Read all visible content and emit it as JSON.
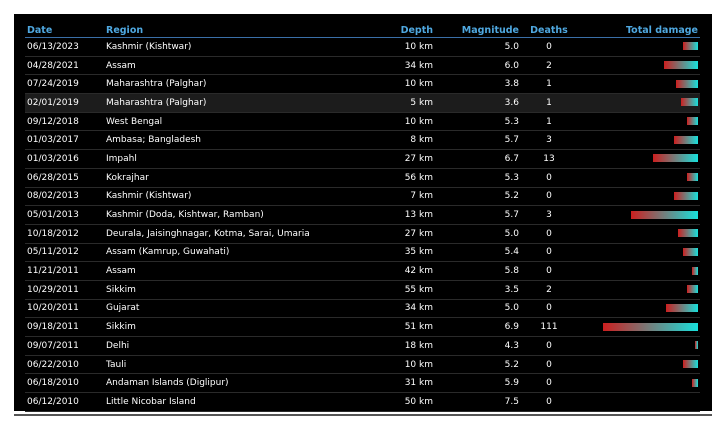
{
  "columns": {
    "date": "Date",
    "region": "Region",
    "depth": "Depth",
    "magnitude": "Magnitude",
    "deaths": "Deaths",
    "damage": "Total damage"
  },
  "colors": {
    "background": "#000000",
    "header": "#4fa8e0",
    "bar_start": "#cc1f1f",
    "bar_end": "#18e0dc"
  },
  "rows": [
    {
      "date": "06/13/2023",
      "region": "Kashmir (Kishtwar)",
      "depth": "10 km",
      "magnitude": "5.0",
      "deaths": "0",
      "damage": 0.16
    },
    {
      "date": "04/28/2021",
      "region": "Assam",
      "depth": "34 km",
      "magnitude": "6.0",
      "deaths": "2",
      "damage": 0.36
    },
    {
      "date": "07/24/2019",
      "region": "Maharashtra (Palghar)",
      "depth": "10 km",
      "magnitude": "3.8",
      "deaths": "1",
      "damage": 0.23
    },
    {
      "date": "02/01/2019",
      "region": "Maharashtra (Palghar)",
      "depth": "5 km",
      "magnitude": "3.6",
      "deaths": "1",
      "damage": 0.18,
      "highlight": true
    },
    {
      "date": "09/12/2018",
      "region": "West Bengal",
      "depth": "10 km",
      "magnitude": "5.3",
      "deaths": "1",
      "damage": 0.12
    },
    {
      "date": "01/03/2017",
      "region": "Ambasa; Bangladesh",
      "depth": "8 km",
      "magnitude": "5.7",
      "deaths": "3",
      "damage": 0.25
    },
    {
      "date": "01/03/2016",
      "region": "Impahl",
      "depth": "27 km",
      "magnitude": "6.7",
      "deaths": "13",
      "damage": 0.47
    },
    {
      "date": "06/28/2015",
      "region": "Kokrajhar",
      "depth": "56 km",
      "magnitude": "5.3",
      "deaths": "0",
      "damage": 0.12
    },
    {
      "date": "08/02/2013",
      "region": "Kashmir (Kishtwar)",
      "depth": "7 km",
      "magnitude": "5.2",
      "deaths": "0",
      "damage": 0.25
    },
    {
      "date": "05/01/2013",
      "region": "Kashmir (Doda, Kishtwar, Ramban)",
      "depth": "13 km",
      "magnitude": "5.7",
      "deaths": "3",
      "damage": 0.71
    },
    {
      "date": "10/18/2012",
      "region": "Deurala, Jaisinghnagar, Kotma, Sarai, Umaria",
      "depth": "27 km",
      "magnitude": "5.0",
      "deaths": "0",
      "damage": 0.21
    },
    {
      "date": "05/11/2012",
      "region": "Assam (Kamrup, Guwahati)",
      "depth": "35 km",
      "magnitude": "5.4",
      "deaths": "0",
      "damage": 0.16
    },
    {
      "date": "11/21/2011",
      "region": "Assam",
      "depth": "42 km",
      "magnitude": "5.8",
      "deaths": "0",
      "damage": 0.06
    },
    {
      "date": "10/29/2011",
      "region": "Sikkim",
      "depth": "55 km",
      "magnitude": "3.5",
      "deaths": "2",
      "damage": 0.12
    },
    {
      "date": "10/20/2011",
      "region": "Gujarat",
      "depth": "34 km",
      "magnitude": "5.0",
      "deaths": "0",
      "damage": 0.34
    },
    {
      "date": "09/18/2011",
      "region": "Sikkim",
      "depth": "51 km",
      "magnitude": "6.9",
      "deaths": "111",
      "damage": 1.0
    },
    {
      "date": "09/07/2011",
      "region": "Delhi",
      "depth": "18 km",
      "magnitude": "4.3",
      "deaths": "0",
      "damage": 0.03
    },
    {
      "date": "06/22/2010",
      "region": "Tauli",
      "depth": "10 km",
      "magnitude": "5.2",
      "deaths": "0",
      "damage": 0.16
    },
    {
      "date": "06/18/2010",
      "region": "Andaman Islands (Diglipur)",
      "depth": "31 km",
      "magnitude": "5.9",
      "deaths": "0",
      "damage": 0.06
    },
    {
      "date": "06/12/2010",
      "region": "Little Nicobar Island",
      "depth": "50 km",
      "magnitude": "7.5",
      "deaths": "0",
      "damage": 0
    }
  ]
}
